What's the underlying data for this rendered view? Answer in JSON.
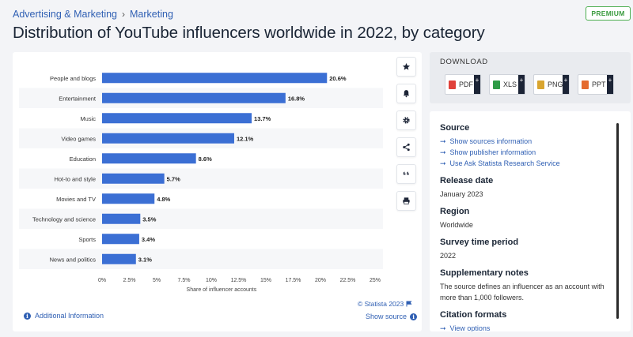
{
  "breadcrumb": {
    "parent": "Advertising & Marketing",
    "separator": "›",
    "current": "Marketing"
  },
  "premium_badge": "PREMIUM",
  "title": "Distribution of YouTube influencers worldwide in 2022, by category",
  "chart_data": {
    "type": "bar",
    "orientation": "horizontal",
    "categories": [
      "People and blogs",
      "Entertainment",
      "Music",
      "Video games",
      "Education",
      "Hot-to and style",
      "Movies and TV",
      "Technology and science",
      "Sports",
      "News and politics"
    ],
    "values": [
      20.6,
      16.8,
      13.7,
      12.1,
      8.6,
      5.7,
      4.8,
      3.5,
      3.4,
      3.1
    ],
    "value_labels": [
      "20.6%",
      "16.8%",
      "13.7%",
      "12.1%",
      "8.6%",
      "5.7%",
      "4.8%",
      "3.5%",
      "3.4%",
      "3.1%"
    ],
    "xlim": [
      0,
      25
    ],
    "ticks": [
      0,
      2.5,
      5,
      7.5,
      10,
      12.5,
      15,
      17.5,
      20,
      22.5,
      25
    ],
    "tick_labels": [
      "0%",
      "2.5%",
      "5%",
      "7.5%",
      "10%",
      "12.5%",
      "15%",
      "17.5%",
      "20%",
      "22.5%",
      "25%"
    ],
    "xlabel": "Share of influencer accounts",
    "bar_color": "#3b6fd4"
  },
  "chart_footer": {
    "copyright": "© Statista 2023",
    "additional_info": "Additional Information",
    "show_source": "Show source"
  },
  "toolbar": [
    "star-icon",
    "bell-icon",
    "gear-icon",
    "share-icon",
    "quote-icon",
    "print-icon"
  ],
  "download": {
    "title": "DOWNLOAD",
    "buttons": [
      {
        "label": "PDF",
        "color": "#e0413a"
      },
      {
        "label": "XLS",
        "color": "#2e9b47"
      },
      {
        "label": "PNG",
        "color": "#d9a52f"
      },
      {
        "label": "PPT",
        "color": "#e46a2e"
      }
    ]
  },
  "info": {
    "source_title": "Source",
    "source_links": [
      "Show sources information",
      "Show publisher information",
      "Use Ask Statista Research Service"
    ],
    "release_title": "Release date",
    "release_value": "January 2023",
    "region_title": "Region",
    "region_value": "Worldwide",
    "survey_title": "Survey time period",
    "survey_value": "2022",
    "notes_title": "Supplementary notes",
    "notes_value": "The source defines an influencer as an account with more than 1,000 followers.",
    "citation_title": "Citation formats",
    "citation_link": "View options"
  }
}
